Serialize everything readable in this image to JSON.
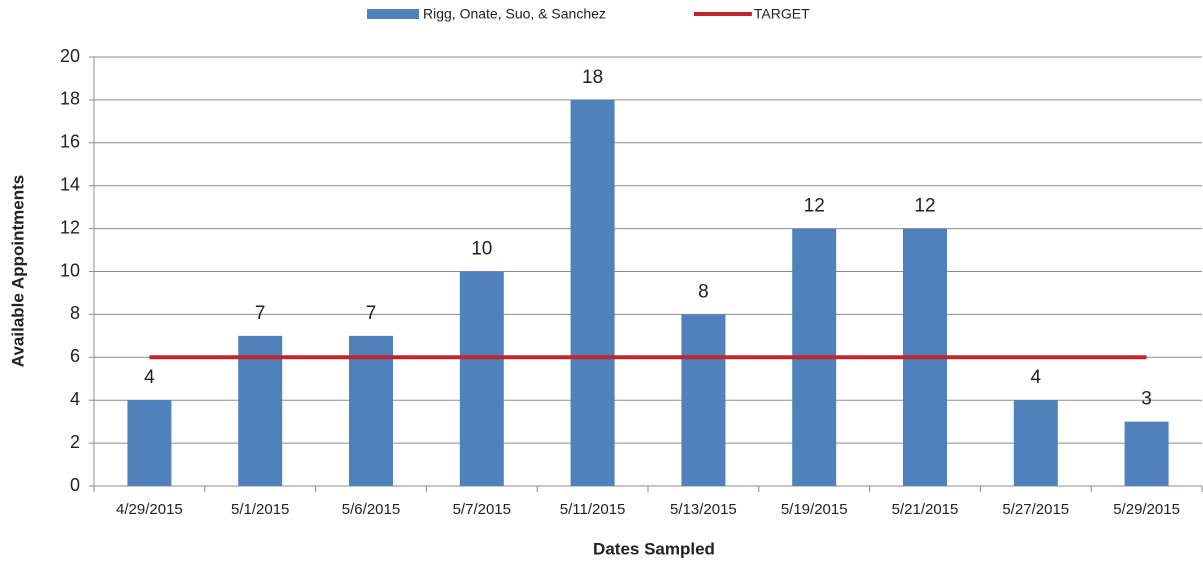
{
  "chart_data": {
    "type": "bar",
    "x_label": "Dates Sampled",
    "y_label": "Available Appointments",
    "categories": [
      "4/29/2015",
      "5/1/2015",
      "5/6/2015",
      "5/7/2015",
      "5/11/2015",
      "5/13/2015",
      "5/19/2015",
      "5/21/2015",
      "5/27/2015",
      "5/29/2015"
    ],
    "series": [
      {
        "name": "Rigg, Onate, Suo, & Sanchez",
        "type": "bar",
        "color": "#4f81bd",
        "values": [
          4,
          7,
          7,
          10,
          18,
          8,
          12,
          12,
          4,
          3
        ],
        "data_labels": true
      },
      {
        "name": "TARGET",
        "type": "line",
        "color": "#c0272d",
        "values": [
          6,
          6,
          6,
          6,
          6,
          6,
          6,
          6,
          6,
          6
        ]
      }
    ],
    "ylim": [
      0,
      20
    ],
    "yticks": [
      0,
      2,
      4,
      6,
      8,
      10,
      12,
      14,
      16,
      18,
      20
    ],
    "grid": true,
    "legend": "top"
  }
}
